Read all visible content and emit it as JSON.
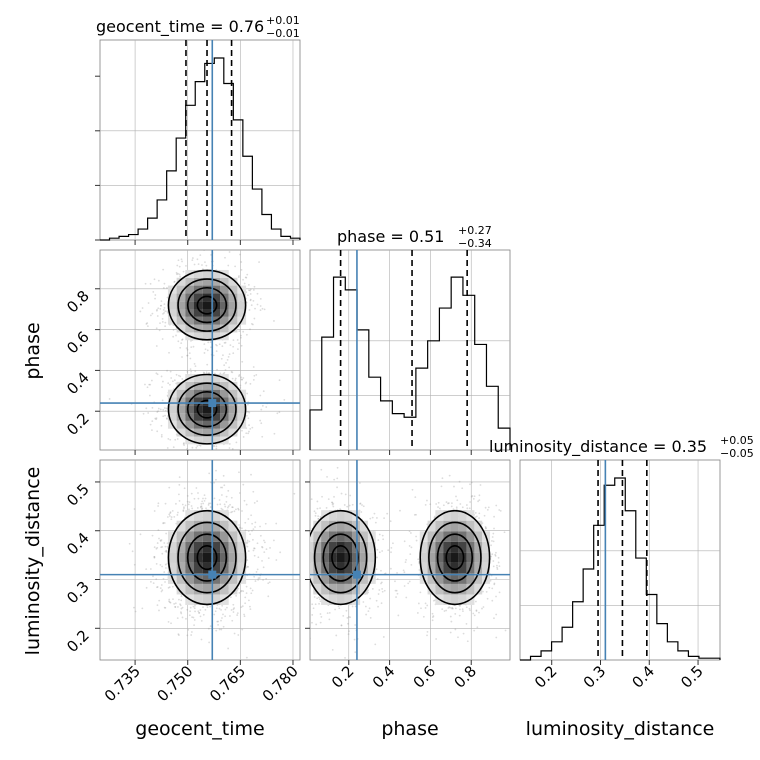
{
  "chart_data": {
    "type": "corner",
    "parameters": [
      {
        "name": "geocent_time",
        "range": [
          0.725,
          0.782
        ],
        "ticks": [
          0.735,
          0.75,
          0.765,
          0.78
        ],
        "tick_labels": [
          "0.735",
          "0.750",
          "0.765",
          "0.780"
        ]
      },
      {
        "name": "phase",
        "range": [
          0.01,
          0.99
        ],
        "ticks": [
          0.2,
          0.4,
          0.6,
          0.8
        ],
        "tick_labels": [
          "0.2",
          "0.4",
          "0.6",
          "0.8"
        ]
      },
      {
        "name": "luminosity_distance",
        "range": [
          0.135,
          0.545
        ],
        "ticks": [
          0.2,
          0.3,
          0.4,
          0.5
        ],
        "tick_labels": [
          "0.2",
          "0.3",
          "0.4",
          "0.5"
        ]
      }
    ],
    "titles": [
      {
        "param": "geocent_time",
        "text": "geocent_time = 0.76",
        "plus": "+0.01",
        "minus": "−0.01"
      },
      {
        "param": "phase",
        "text": "phase = 0.51",
        "plus": "+0.27",
        "minus": "−0.34"
      },
      {
        "param": "luminosity_distance",
        "text": "luminosity_distance = 0.35",
        "plus": "+0.05",
        "minus": "−0.05"
      }
    ],
    "truths": {
      "geocent_time": 0.757,
      "phase": 0.24,
      "luminosity_distance": 0.31
    },
    "quantiles": {
      "geocent_time": [
        0.7495,
        0.7555,
        0.7625
      ],
      "phase": [
        0.16,
        0.51,
        0.78
      ],
      "luminosity_distance": [
        0.295,
        0.345,
        0.395
      ]
    },
    "histograms": {
      "geocent_time": [
        0.0,
        0.01,
        0.02,
        0.03,
        0.06,
        0.12,
        0.22,
        0.38,
        0.56,
        0.74,
        0.87,
        0.97,
        1.0,
        0.86,
        0.66,
        0.46,
        0.28,
        0.14,
        0.06,
        0.02,
        0.01
      ],
      "phase": [
        0.22,
        0.62,
        0.95,
        0.88,
        0.66,
        0.4,
        0.27,
        0.2,
        0.18,
        0.45,
        0.6,
        0.78,
        0.95,
        0.85,
        0.58,
        0.35,
        0.12
      ],
      "luminosity_distance": [
        0.0,
        0.02,
        0.05,
        0.1,
        0.18,
        0.32,
        0.5,
        0.74,
        0.96,
        1.0,
        0.82,
        0.56,
        0.36,
        0.2,
        0.1,
        0.05,
        0.02,
        0.01,
        0.01
      ]
    },
    "density_2d": {
      "phase_vs_geocent_time": {
        "modes": [
          {
            "x": 0.7555,
            "y": 0.72,
            "sx": 0.0055,
            "sy": 0.085,
            "w": 1
          },
          {
            "x": 0.7555,
            "y": 0.21,
            "sx": 0.0055,
            "sy": 0.085,
            "w": 1
          }
        ]
      },
      "luminosity_distance_vs_geocent_time": {
        "modes": [
          {
            "x": 0.7555,
            "y": 0.345,
            "sx": 0.0055,
            "sy": 0.048,
            "w": 1
          }
        ]
      },
      "luminosity_distance_vs_phase": {
        "modes": [
          {
            "x": 0.16,
            "y": 0.345,
            "sx": 0.085,
            "sy": 0.048,
            "w": 1
          },
          {
            "x": 0.72,
            "y": 0.345,
            "sx": 0.085,
            "sy": 0.048,
            "w": 1
          }
        ]
      }
    },
    "grid": true
  }
}
